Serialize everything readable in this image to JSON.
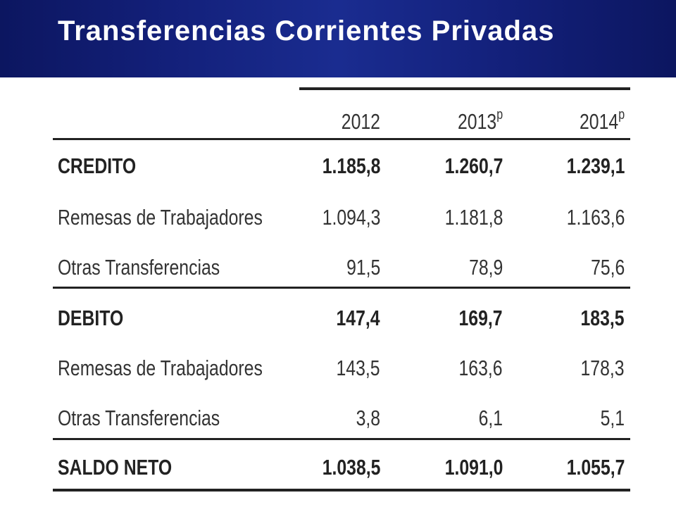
{
  "header": {
    "title": "Transferencias Corrientes Privadas"
  },
  "table": {
    "years": [
      {
        "year": "2012",
        "mark": ""
      },
      {
        "year": "2013",
        "mark": "p"
      },
      {
        "year": "2014",
        "mark": "p"
      }
    ],
    "rows": [
      {
        "label": "CREDITO",
        "values": [
          "1.185,8",
          "1.260,7",
          "1.239,1"
        ],
        "bold": true
      },
      {
        "label": "Remesas de Trabajadores",
        "values": [
          "1.094,3",
          "1.181,8",
          "1.163,6"
        ],
        "bold": false
      },
      {
        "label": "Otras Transferencias",
        "values": [
          "91,5",
          "78,9",
          "75,6"
        ],
        "bold": false
      },
      {
        "label": "DEBITO",
        "values": [
          "147,4",
          "169,7",
          "183,5"
        ],
        "bold": true
      },
      {
        "label": "Remesas de Trabajadores",
        "values": [
          "143,5",
          "163,6",
          "178,3"
        ],
        "bold": false
      },
      {
        "label": "Otras Transferencias",
        "values": [
          "3,8",
          "6,1",
          "5,1"
        ],
        "bold": false
      },
      {
        "label": "SALDO NETO",
        "values": [
          "1.038,5",
          "1.091,0",
          "1.055,7"
        ],
        "bold": true
      }
    ]
  }
}
